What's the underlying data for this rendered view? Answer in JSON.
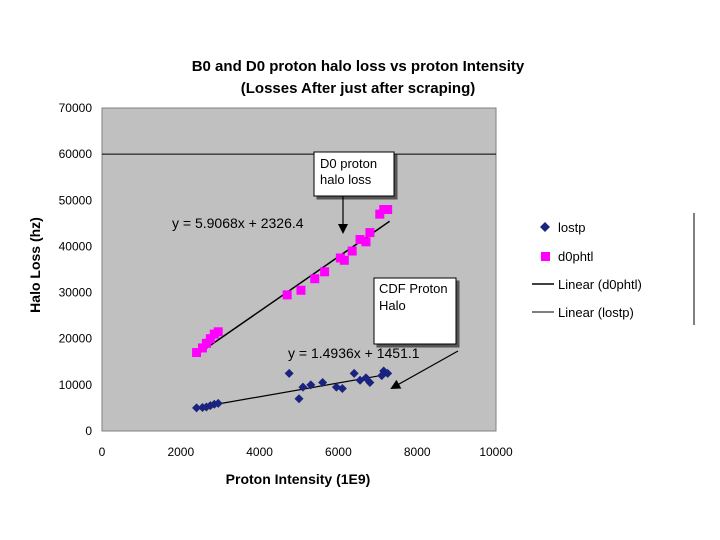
{
  "chart_data": {
    "type": "scatter",
    "title": "B0 and D0 proton halo loss vs proton Intensity",
    "subtitle": "(Losses After just after scraping)",
    "xlabel": "Proton Intensity (1E9)",
    "ylabel": "Halo Loss (hz)",
    "xlim": [
      0,
      10000
    ],
    "ylim": [
      0,
      70000
    ],
    "x_ticks": [
      "0",
      "2000",
      "4000",
      "6000",
      "8000",
      "10000"
    ],
    "y_ticks": [
      "0",
      "10000",
      "20000",
      "30000",
      "40000",
      "50000",
      "60000",
      "70000"
    ],
    "reference_line_y": 60000,
    "series": [
      {
        "name": "lostp",
        "marker": "diamond",
        "color": "#1a237e",
        "points": [
          [
            2400,
            5000
          ],
          [
            2550,
            5100
          ],
          [
            2650,
            5200
          ],
          [
            2750,
            5500
          ],
          [
            2850,
            5800
          ],
          [
            2950,
            6000
          ],
          [
            4750,
            12500
          ],
          [
            5000,
            7000
          ],
          [
            5100,
            9500
          ],
          [
            5300,
            10000
          ],
          [
            5600,
            10500
          ],
          [
            5950,
            9500
          ],
          [
            6100,
            9200
          ],
          [
            6400,
            12500
          ],
          [
            6550,
            11000
          ],
          [
            6700,
            11500
          ],
          [
            6800,
            10500
          ],
          [
            7100,
            12000
          ],
          [
            7150,
            13000
          ],
          [
            7250,
            12500
          ]
        ],
        "trendline": {
          "name": "Linear (lostp)",
          "slope": 1.4936,
          "intercept": 1451.1,
          "x_range": [
            2400,
            7300
          ],
          "equation": "y = 1.4936x + 1451.1"
        }
      },
      {
        "name": "d0phtl",
        "marker": "square",
        "color": "#ff00ff",
        "points": [
          [
            2400,
            17000
          ],
          [
            2550,
            18000
          ],
          [
            2650,
            19000
          ],
          [
            2750,
            20000
          ],
          [
            2850,
            21000
          ],
          [
            2950,
            21500
          ],
          [
            4700,
            29500
          ],
          [
            5050,
            30500
          ],
          [
            5400,
            33000
          ],
          [
            5650,
            34500
          ],
          [
            6050,
            37500
          ],
          [
            6150,
            37000
          ],
          [
            6350,
            39000
          ],
          [
            6550,
            41500
          ],
          [
            6700,
            41000
          ],
          [
            6800,
            43000
          ],
          [
            7050,
            47000
          ],
          [
            7150,
            48000
          ],
          [
            7250,
            48000
          ]
        ],
        "trendline": {
          "name": "Linear (d0phtl)",
          "slope": 5.9068,
          "intercept": 2326.4,
          "x_range": [
            2400,
            7300
          ],
          "equation": "y = 5.9068x + 2326.4"
        }
      }
    ],
    "annotations": [
      {
        "text_lines": [
          "D0 proton",
          "halo loss"
        ]
      },
      {
        "text_lines": [
          "CDF Proton",
          "Halo"
        ]
      }
    ],
    "legend": {
      "placement": "right",
      "entries": [
        {
          "label": "lostp",
          "symbol": "diamond",
          "color": "#1a237e"
        },
        {
          "label": "d0phtl",
          "symbol": "square",
          "color": "#ff00ff"
        },
        {
          "label": "Linear (d0phtl)",
          "symbol": "line",
          "color": "#000000"
        },
        {
          "label": "Linear (lostp)",
          "symbol": "line",
          "color": "#000000"
        }
      ]
    }
  },
  "colors": {
    "plot_background": "#c0c0c0",
    "trendline": "#000000"
  }
}
